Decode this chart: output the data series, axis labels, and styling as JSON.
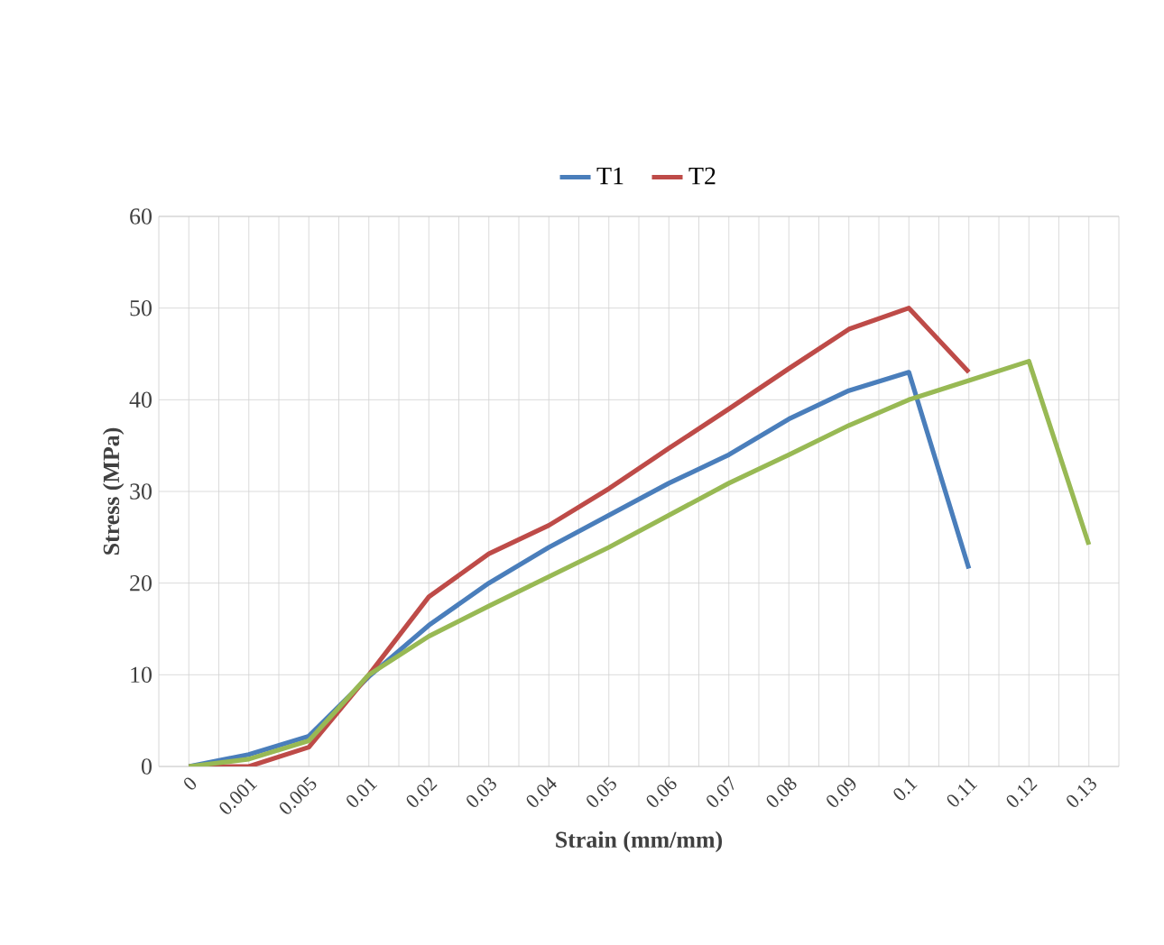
{
  "chart_data": {
    "type": "line",
    "xlabel": "Strain (mm/mm)",
    "ylabel": "Stress (MPa)",
    "categories": [
      "0",
      "0.001",
      "0.005",
      "0.01",
      "0.02",
      "0.03",
      "0.04",
      "0.05",
      "0.06",
      "0.07",
      "0.08",
      "0.09",
      "0.1",
      "0.11",
      "0.12",
      "0.13"
    ],
    "series": [
      {
        "name": "T1",
        "color": "#4a7ebb",
        "values": [
          0,
          1.3,
          3.3,
          9.8,
          15.4,
          20,
          23.9,
          27.4,
          30.9,
          34,
          37.9,
          41,
          43,
          21.6,
          null,
          null
        ]
      },
      {
        "name": "T2",
        "color": "#be4b48",
        "values": [
          0,
          0,
          2.1,
          10,
          18.5,
          23.2,
          26.3,
          30.3,
          34.7,
          39,
          43.4,
          47.7,
          50,
          43,
          null,
          null
        ]
      },
      {
        "color": "#98b954",
        "values": [
          0,
          0.8,
          2.8,
          10,
          14.2,
          17.5,
          20.7,
          23.9,
          27.4,
          30.9,
          34,
          37.2,
          40,
          42.1,
          44.2,
          24.2
        ]
      }
    ],
    "ylim": [
      0,
      60
    ],
    "yticks": [
      0,
      10,
      20,
      30,
      40,
      50,
      60
    ],
    "grid": true,
    "legend": "top",
    "marker": "none",
    "line_style": "solid"
  }
}
